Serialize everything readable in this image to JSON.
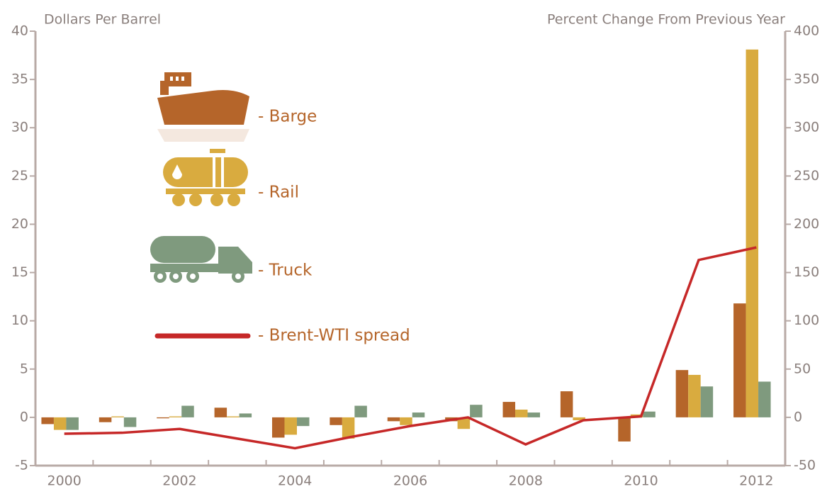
{
  "chart_data": {
    "type": "bar",
    "y_label": "Dollars Per Barrel",
    "y2_label": "Percent Change From Previous Year",
    "categories": [
      "2000",
      null,
      "2002",
      null,
      "2004",
      null,
      "2006",
      null,
      "2008",
      null,
      "2010",
      null,
      "2012"
    ],
    "series": [
      {
        "name": "- Barge",
        "color": "#b5652a",
        "axis": "y2",
        "values": [
          -7,
          -5,
          -1,
          10,
          -21,
          -8,
          -4,
          -4,
          16,
          27,
          -25,
          49,
          118
        ]
      },
      {
        "name": "- Rail",
        "color": "#d9ab3f",
        "axis": "y2",
        "values": [
          -13,
          1,
          1,
          1,
          -18,
          -22,
          -8,
          -12,
          8,
          -3,
          3,
          44,
          381
        ]
      },
      {
        "name": "- Truck",
        "color": "#7f9a7e",
        "axis": "y2",
        "values": [
          -13,
          -10,
          12,
          4,
          -9,
          12,
          5,
          13,
          5,
          0,
          6,
          32,
          37
        ]
      },
      {
        "name": "- Brent-WTI spread",
        "color": "#c62828",
        "type": "line",
        "values": [
          -1.7,
          -1.6,
          -1.2,
          -2.2,
          -3.2,
          -2.0,
          -0.9,
          0.0,
          -2.8,
          -0.3,
          0.1,
          16.3,
          17.6
        ]
      }
    ],
    "ylim": [
      -5,
      40
    ],
    "yticks": [
      -5,
      0,
      5,
      10,
      15,
      20,
      25,
      30,
      35,
      40
    ],
    "y2lim": [
      -50,
      400
    ],
    "y2ticks": [
      -50,
      0,
      50,
      100,
      150,
      200,
      250,
      300,
      350,
      400
    ]
  }
}
